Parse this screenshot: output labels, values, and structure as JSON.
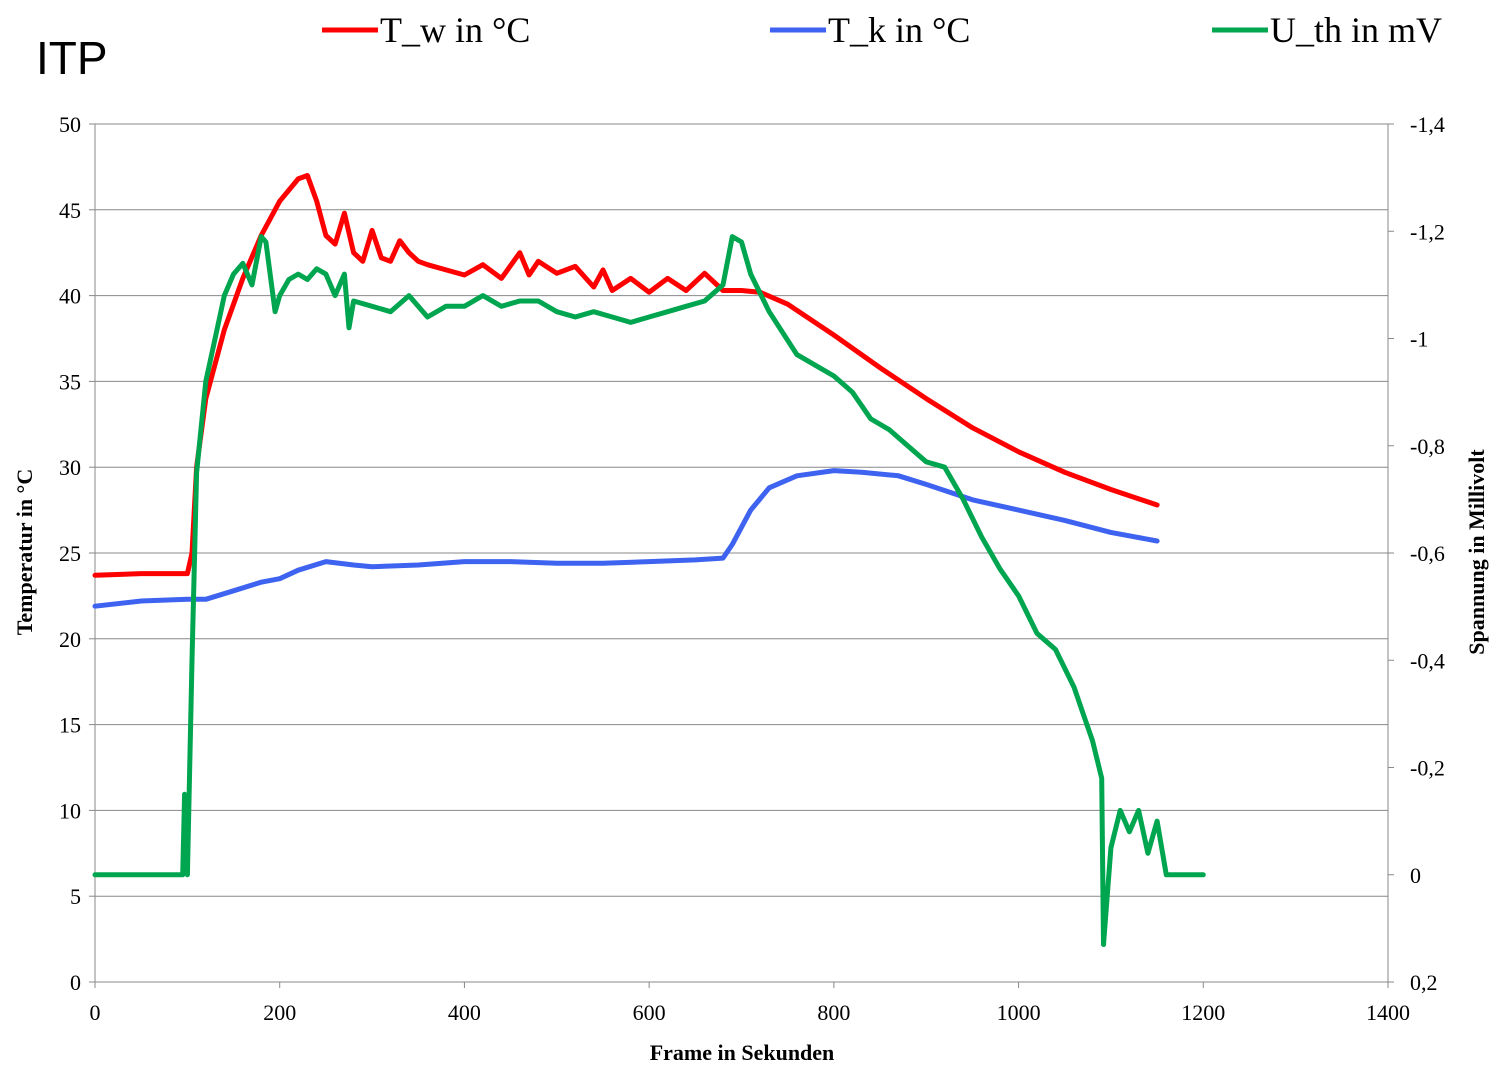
{
  "corner_label": "ITP",
  "legend": [
    {
      "label": "T_w in °C",
      "color": "#ff0000"
    },
    {
      "label": "T_k in °C",
      "color": "#3d63f0"
    },
    {
      "label": "U_th in mV",
      "color": "#00a550"
    }
  ],
  "chart_data": {
    "type": "line",
    "xlabel": "Frame in Sekunden",
    "ylabel": "Temperatur in °C",
    "y2label": "Spannung in Millivolt",
    "xlim": [
      0,
      1400
    ],
    "ylim": [
      0,
      50
    ],
    "y2lim": [
      0.2,
      -1.4
    ],
    "y2_reversed": true,
    "grid": "horizontal",
    "legend_position": "top",
    "x_ticks": [
      "0",
      "200",
      "400",
      "600",
      "800",
      "1000",
      "1200",
      "1400"
    ],
    "y_ticks": [
      "0",
      "5",
      "10",
      "15",
      "20",
      "25",
      "30",
      "35",
      "40",
      "45",
      "50"
    ],
    "y2_ticks": [
      "0,2",
      "0",
      "-0,2",
      "-0,4",
      "-0,6",
      "-0,8",
      "-1",
      "-1,2",
      "-1,4"
    ],
    "y2_tick_values": [
      0.2,
      0,
      -0.2,
      -0.4,
      -0.6,
      -0.8,
      -1,
      -1.2,
      -1.4
    ],
    "series": [
      {
        "name": "T_w in °C",
        "axis": "left",
        "color": "#ff0000",
        "x": [
          0,
          50,
          100,
          105,
          110,
          120,
          140,
          160,
          180,
          200,
          220,
          230,
          240,
          250,
          260,
          270,
          280,
          290,
          300,
          310,
          320,
          330,
          340,
          350,
          360,
          380,
          400,
          420,
          440,
          460,
          470,
          480,
          500,
          520,
          540,
          550,
          560,
          580,
          600,
          620,
          640,
          660,
          680,
          700,
          720,
          750,
          800,
          850,
          900,
          950,
          1000,
          1050,
          1100,
          1150
        ],
        "y": [
          23.7,
          23.8,
          23.8,
          25,
          30,
          34,
          38,
          41,
          43.5,
          45.5,
          46.8,
          47,
          45.5,
          43.5,
          43,
          44.8,
          42.5,
          42,
          43.8,
          42.2,
          42,
          43.2,
          42.5,
          42,
          41.8,
          41.5,
          41.2,
          41.8,
          41,
          42.5,
          41.2,
          42,
          41.3,
          41.7,
          40.5,
          41.5,
          40.3,
          41,
          40.2,
          41,
          40.3,
          41.3,
          40.3,
          40.3,
          40.2,
          39.5,
          37.7,
          35.8,
          34,
          32.3,
          30.9,
          29.7,
          28.7,
          27.8
        ]
      },
      {
        "name": "T_k in °C",
        "axis": "left",
        "color": "#3d63f0",
        "x": [
          0,
          50,
          100,
          120,
          150,
          180,
          200,
          220,
          250,
          280,
          300,
          350,
          400,
          450,
          500,
          550,
          600,
          650,
          680,
          690,
          710,
          730,
          760,
          800,
          830,
          870,
          900,
          950,
          1000,
          1050,
          1100,
          1150
        ],
        "y": [
          21.9,
          22.2,
          22.3,
          22.3,
          22.8,
          23.3,
          23.5,
          24,
          24.5,
          24.3,
          24.2,
          24.3,
          24.5,
          24.5,
          24.4,
          24.4,
          24.5,
          24.6,
          24.7,
          25.5,
          27.5,
          28.8,
          29.5,
          29.8,
          29.7,
          29.5,
          29,
          28.1,
          27.5,
          26.9,
          26.2,
          25.7
        ]
      },
      {
        "name": "U_th in mV",
        "axis": "right",
        "color": "#00a550",
        "x": [
          0,
          50,
          95,
          97,
          100,
          105,
          110,
          120,
          130,
          140,
          150,
          160,
          170,
          180,
          185,
          195,
          200,
          210,
          220,
          230,
          240,
          250,
          260,
          270,
          275,
          280,
          300,
          320,
          340,
          360,
          380,
          400,
          420,
          440,
          460,
          480,
          500,
          520,
          540,
          560,
          580,
          600,
          620,
          640,
          660,
          680,
          690,
          700,
          710,
          730,
          760,
          780,
          800,
          820,
          840,
          860,
          880,
          900,
          920,
          940,
          960,
          980,
          1000,
          1020,
          1040,
          1060,
          1070,
          1080,
          1090,
          1092,
          1100,
          1110,
          1120,
          1130,
          1140,
          1150,
          1160,
          1180,
          1200
        ],
        "y": [
          0,
          0,
          0,
          -0.15,
          0,
          -0.4,
          -0.75,
          -0.92,
          -1.0,
          -1.08,
          -1.12,
          -1.14,
          -1.1,
          -1.19,
          -1.18,
          -1.05,
          -1.08,
          -1.11,
          -1.12,
          -1.11,
          -1.13,
          -1.12,
          -1.08,
          -1.12,
          -1.02,
          -1.07,
          -1.06,
          -1.05,
          -1.08,
          -1.04,
          -1.06,
          -1.06,
          -1.08,
          -1.06,
          -1.07,
          -1.07,
          -1.05,
          -1.04,
          -1.05,
          -1.04,
          -1.03,
          -1.04,
          -1.05,
          -1.06,
          -1.07,
          -1.1,
          -1.19,
          -1.18,
          -1.12,
          -1.05,
          -0.97,
          -0.95,
          -0.93,
          -0.9,
          -0.85,
          -0.83,
          -0.8,
          -0.77,
          -0.76,
          -0.7,
          -0.63,
          -0.57,
          -0.52,
          -0.45,
          -0.42,
          -0.35,
          -0.3,
          -0.25,
          -0.18,
          0.13,
          -0.05,
          -0.12,
          -0.08,
          -0.12,
          -0.04,
          -0.1,
          0,
          0,
          0
        ]
      }
    ]
  }
}
